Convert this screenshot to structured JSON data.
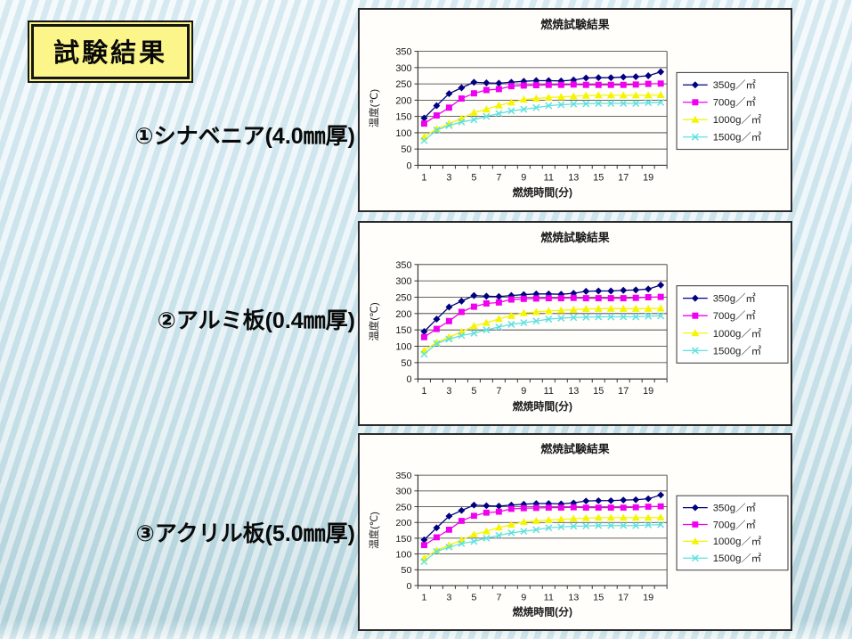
{
  "slide": {
    "title": "試験結果",
    "materials": [
      {
        "label": "①シナベニア(4.0㎜厚)"
      },
      {
        "label": "②アルミ板(0.4㎜厚)"
      },
      {
        "label": "③アクリル板(5.0㎜厚)"
      }
    ]
  },
  "colors": {
    "background_top": "#edf6fa",
    "background_bottom": "#b6d3da",
    "title_box_fill": "#fbf58a",
    "title_box_border": "#151515",
    "chart_background": "#fffefb",
    "chart_border": "#2b2b2b",
    "grid_color": "#333333"
  },
  "chart_data": [
    {
      "type": "line",
      "title": "燃焼試験結果",
      "xlabel": "燃焼時間(分)",
      "ylabel": "温度(℃)",
      "ylim": [
        0,
        350
      ],
      "yticks": [
        0,
        50,
        100,
        150,
        200,
        250,
        300,
        350
      ],
      "x": [
        1,
        2,
        3,
        4,
        5,
        6,
        7,
        8,
        9,
        10,
        11,
        12,
        13,
        14,
        15,
        16,
        17,
        18,
        19,
        20
      ],
      "xtick_labels": [
        1,
        3,
        5,
        7,
        9,
        11,
        13,
        15,
        17,
        19
      ],
      "grid": true,
      "legend_position": "right",
      "series": [
        {
          "name": "350g／㎡",
          "marker": "diamond",
          "color": "#000080",
          "values": [
            145,
            183,
            220,
            238,
            255,
            253,
            252,
            255,
            258,
            260,
            260,
            259,
            262,
            268,
            269,
            269,
            271,
            272,
            275,
            287
          ]
        },
        {
          "name": "700g／㎡",
          "marker": "square",
          "color": "#f000f0",
          "values": [
            128,
            153,
            177,
            205,
            221,
            231,
            234,
            243,
            245,
            246,
            247,
            247,
            248,
            247,
            247,
            247,
            247,
            248,
            250,
            251
          ]
        },
        {
          "name": "1000g／㎡",
          "marker": "triangle",
          "color": "#f5f500",
          "values": [
            87,
            112,
            128,
            144,
            162,
            172,
            184,
            193,
            202,
            205,
            208,
            210,
            212,
            214,
            215,
            215,
            215,
            215,
            215,
            216
          ]
        },
        {
          "name": "1500g／㎡",
          "marker": "x",
          "color": "#5fe0e0",
          "values": [
            76,
            108,
            122,
            133,
            140,
            150,
            159,
            167,
            172,
            177,
            183,
            186,
            188,
            189,
            190,
            190,
            190,
            190,
            192,
            193
          ]
        }
      ]
    },
    {
      "type": "line",
      "title": "燃焼試験結果",
      "xlabel": "燃焼時間(分)",
      "ylabel": "温度(℃)",
      "ylim": [
        0,
        350
      ],
      "yticks": [
        0,
        50,
        100,
        150,
        200,
        250,
        300,
        350
      ],
      "x": [
        1,
        2,
        3,
        4,
        5,
        6,
        7,
        8,
        9,
        10,
        11,
        12,
        13,
        14,
        15,
        16,
        17,
        18,
        19,
        20
      ],
      "xtick_labels": [
        1,
        3,
        5,
        7,
        9,
        11,
        13,
        15,
        17,
        19
      ],
      "grid": true,
      "legend_position": "right",
      "series": [
        {
          "name": "350g／㎡",
          "marker": "diamond",
          "color": "#000080",
          "values": [
            145,
            183,
            220,
            238,
            255,
            253,
            252,
            255,
            258,
            260,
            260,
            259,
            262,
            268,
            269,
            269,
            271,
            272,
            275,
            287
          ]
        },
        {
          "name": "700g／㎡",
          "marker": "square",
          "color": "#f000f0",
          "values": [
            128,
            153,
            177,
            205,
            221,
            231,
            234,
            243,
            245,
            246,
            247,
            247,
            248,
            247,
            247,
            247,
            247,
            248,
            250,
            251
          ]
        },
        {
          "name": "1000g／㎡",
          "marker": "triangle",
          "color": "#f5f500",
          "values": [
            87,
            112,
            128,
            144,
            162,
            172,
            184,
            193,
            202,
            205,
            208,
            210,
            212,
            214,
            215,
            215,
            215,
            215,
            215,
            216
          ]
        },
        {
          "name": "1500g／㎡",
          "marker": "x",
          "color": "#5fe0e0",
          "values": [
            76,
            108,
            122,
            133,
            140,
            150,
            159,
            167,
            172,
            177,
            183,
            186,
            188,
            189,
            190,
            190,
            190,
            190,
            192,
            193
          ]
        }
      ]
    },
    {
      "type": "line",
      "title": "燃焼試験結果",
      "xlabel": "燃焼時間(分)",
      "ylabel": "温度(℃)",
      "ylim": [
        0,
        350
      ],
      "yticks": [
        0,
        50,
        100,
        150,
        200,
        250,
        300,
        350
      ],
      "x": [
        1,
        2,
        3,
        4,
        5,
        6,
        7,
        8,
        9,
        10,
        11,
        12,
        13,
        14,
        15,
        16,
        17,
        18,
        19,
        20
      ],
      "xtick_labels": [
        1,
        3,
        5,
        7,
        9,
        11,
        13,
        15,
        17,
        19
      ],
      "grid": true,
      "legend_position": "right",
      "series": [
        {
          "name": "350g／㎡",
          "marker": "diamond",
          "color": "#000080",
          "values": [
            145,
            183,
            220,
            238,
            255,
            253,
            252,
            255,
            258,
            260,
            260,
            259,
            262,
            268,
            269,
            269,
            271,
            272,
            275,
            287
          ]
        },
        {
          "name": "700g／㎡",
          "marker": "square",
          "color": "#f000f0",
          "values": [
            128,
            153,
            177,
            205,
            221,
            231,
            234,
            243,
            245,
            246,
            247,
            247,
            248,
            247,
            247,
            247,
            247,
            248,
            250,
            251
          ]
        },
        {
          "name": "1000g／㎡",
          "marker": "triangle",
          "color": "#f5f500",
          "values": [
            87,
            112,
            128,
            144,
            162,
            172,
            184,
            193,
            202,
            205,
            208,
            210,
            212,
            214,
            215,
            215,
            215,
            215,
            215,
            216
          ]
        },
        {
          "name": "1500g／㎡",
          "marker": "x",
          "color": "#5fe0e0",
          "values": [
            76,
            108,
            122,
            133,
            140,
            150,
            159,
            167,
            172,
            177,
            183,
            186,
            188,
            189,
            190,
            190,
            190,
            190,
            192,
            193
          ]
        }
      ]
    }
  ]
}
